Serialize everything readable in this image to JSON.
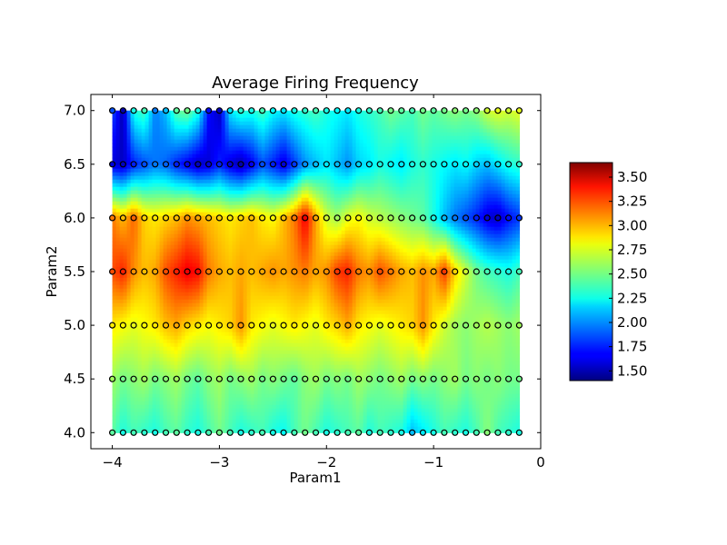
{
  "chart_data": {
    "type": "heatmap",
    "title": "Average Firing Frequency",
    "xlabel": "Param1",
    "ylabel": "Param2",
    "xlim": [
      -4.2,
      0
    ],
    "ylim": [
      3.85,
      7.15
    ],
    "xticks": [
      "−4",
      "−3",
      "−2",
      "−1",
      "0"
    ],
    "xtick_values": [
      -4,
      -3,
      -2,
      -1,
      0
    ],
    "yticks": [
      "4.0",
      "4.5",
      "5.0",
      "5.5",
      "6.0",
      "6.5",
      "7.0"
    ],
    "ytick_values": [
      4.0,
      4.5,
      5.0,
      5.5,
      6.0,
      6.5,
      7.0
    ],
    "colormap": "jet",
    "colorbar": {
      "range": [
        1.4,
        3.65
      ],
      "ticks": [
        "1.50",
        "1.75",
        "2.00",
        "2.25",
        "2.50",
        "2.75",
        "3.00",
        "3.25",
        "3.50"
      ],
      "tick_values": [
        1.5,
        1.75,
        2.0,
        2.25,
        2.5,
        2.75,
        3.0,
        3.25,
        3.5
      ]
    },
    "grid": false,
    "x": [
      -4.0,
      -3.9,
      -3.8,
      -3.7,
      -3.6,
      -3.5,
      -3.4,
      -3.3,
      -3.2,
      -3.1,
      -3.0,
      -2.9,
      -2.8,
      -2.7,
      -2.6,
      -2.5,
      -2.4,
      -2.3,
      -2.2,
      -2.1,
      -2.0,
      -1.9,
      -1.8,
      -1.7,
      -1.6,
      -1.5,
      -1.4,
      -1.3,
      -1.2,
      -1.1,
      -1.0,
      -0.9,
      -0.8,
      -0.7,
      -0.6,
      -0.5,
      -0.4,
      -0.3,
      -0.2
    ],
    "y": [
      4.0,
      4.5,
      5.0,
      5.5,
      6.0,
      6.5,
      7.0
    ],
    "z": [
      [
        2.45,
        2.3,
        2.4,
        2.35,
        2.3,
        2.4,
        2.45,
        2.35,
        2.3,
        2.4,
        2.5,
        2.4,
        2.3,
        2.35,
        2.4,
        2.3,
        2.25,
        2.4,
        2.5,
        2.4,
        2.3,
        2.35,
        2.4,
        2.45,
        2.3,
        2.4,
        2.35,
        2.3,
        2.1,
        2.2,
        2.3,
        2.4,
        2.35,
        2.3,
        2.4,
        2.55,
        2.4,
        2.35,
        2.3
      ],
      [
        2.6,
        2.5,
        2.55,
        2.6,
        2.5,
        2.55,
        2.6,
        2.5,
        2.45,
        2.55,
        2.6,
        2.5,
        2.55,
        2.6,
        2.5,
        2.55,
        2.5,
        2.45,
        2.55,
        2.6,
        2.5,
        2.55,
        2.5,
        2.6,
        2.55,
        2.5,
        2.55,
        2.6,
        2.5,
        2.55,
        2.5,
        2.55,
        2.6,
        2.5,
        2.55,
        2.5,
        2.55,
        2.5,
        2.5
      ],
      [
        2.85,
        2.8,
        2.75,
        2.8,
        2.85,
        2.95,
        3.0,
        2.9,
        2.85,
        2.8,
        2.85,
        2.9,
        3.05,
        2.85,
        2.8,
        2.75,
        2.8,
        2.85,
        2.8,
        2.75,
        2.85,
        2.9,
        3.0,
        2.85,
        2.8,
        2.75,
        2.8,
        2.85,
        2.9,
        3.05,
        2.85,
        2.7,
        2.6,
        2.55,
        2.6,
        2.65,
        2.6,
        2.55,
        2.6
      ],
      [
        3.2,
        3.3,
        3.05,
        2.95,
        3.0,
        3.2,
        3.3,
        3.4,
        3.35,
        3.1,
        3.0,
        2.95,
        3.0,
        2.95,
        3.0,
        3.05,
        3.0,
        3.05,
        3.1,
        3.0,
        3.05,
        3.25,
        3.3,
        3.1,
        3.05,
        3.2,
        3.1,
        3.0,
        2.95,
        3.05,
        3.0,
        3.25,
        2.9,
        2.7,
        2.5,
        2.4,
        2.35,
        2.3,
        2.4
      ],
      [
        3.1,
        2.95,
        3.15,
        2.9,
        2.85,
        2.9,
        2.95,
        3.05,
        3.0,
        2.95,
        2.9,
        2.85,
        2.9,
        2.95,
        2.85,
        2.8,
        2.95,
        3.1,
        3.4,
        3.0,
        2.7,
        2.6,
        2.75,
        2.8,
        2.7,
        2.65,
        2.6,
        2.55,
        2.5,
        2.45,
        2.3,
        2.1,
        1.95,
        1.85,
        1.75,
        1.6,
        1.55,
        1.7,
        1.8
      ],
      [
        1.6,
        1.55,
        1.75,
        1.85,
        1.95,
        1.9,
        1.75,
        1.65,
        1.55,
        1.6,
        1.75,
        1.6,
        1.5,
        1.65,
        1.85,
        1.75,
        1.6,
        1.8,
        2.0,
        2.1,
        2.2,
        2.1,
        2.0,
        2.15,
        2.2,
        2.3,
        2.25,
        2.2,
        2.3,
        2.35,
        2.3,
        2.25,
        2.2,
        2.25,
        2.15,
        2.1,
        2.2,
        2.3,
        2.35
      ],
      [
        1.85,
        1.5,
        2.3,
        2.4,
        1.95,
        2.1,
        2.45,
        2.5,
        2.3,
        1.7,
        1.55,
        2.2,
        2.35,
        2.3,
        2.4,
        2.25,
        2.2,
        2.3,
        2.35,
        2.4,
        2.3,
        2.25,
        2.2,
        2.3,
        2.35,
        2.4,
        2.5,
        2.45,
        2.4,
        2.5,
        2.45,
        2.5,
        2.55,
        2.5,
        2.55,
        2.7,
        2.75,
        2.7,
        2.75
      ]
    ]
  }
}
